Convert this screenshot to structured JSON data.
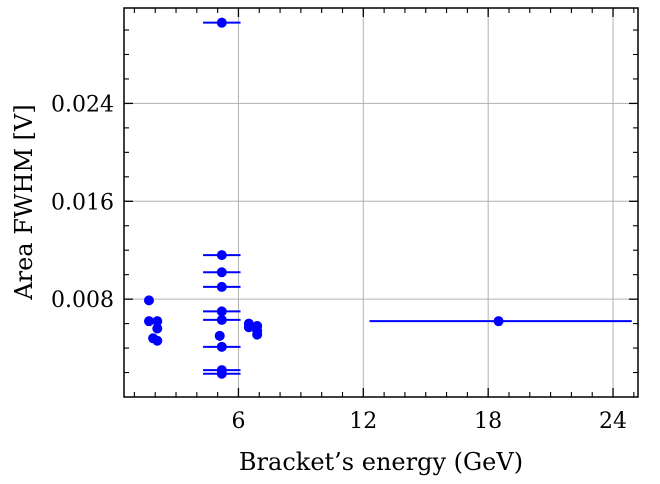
{
  "chart_data": {
    "type": "scatter",
    "xlabel": "Bracket’s energy (GeV)",
    "ylabel": "Area FWHM [V]",
    "xlim": [
      0.5,
      25.2
    ],
    "ylim": [
      0.0,
      0.0318
    ],
    "xticks": [
      6,
      12,
      18,
      24
    ],
    "xtick_labels": [
      "6",
      "12",
      "18",
      "24"
    ],
    "yticks": [
      0.008,
      0.016,
      0.024
    ],
    "ytick_labels": [
      "0.008",
      "0.016",
      "0.024"
    ],
    "grid": true,
    "series": [
      {
        "color": "#0000ff",
        "points": [
          {
            "x": 5.2,
            "y": 0.0306,
            "xerr": 0.9
          },
          {
            "x": 5.2,
            "y": 0.0116,
            "xerr": 0.9
          },
          {
            "x": 5.2,
            "y": 0.0102,
            "xerr": 0.9
          },
          {
            "x": 5.2,
            "y": 0.009,
            "xerr": 0.9
          },
          {
            "x": 5.2,
            "y": 0.007,
            "xerr": 0.9
          },
          {
            "x": 5.2,
            "y": 0.0063,
            "xerr": 0.9
          },
          {
            "x": 5.2,
            "y": 0.0041,
            "xerr": 0.9
          },
          {
            "x": 5.2,
            "y": 0.0022,
            "xerr": 0.9
          },
          {
            "x": 5.2,
            "y": 0.0019,
            "xerr": 0.9
          },
          {
            "x": 5.1,
            "y": 0.005
          },
          {
            "x": 1.7,
            "y": 0.0079
          },
          {
            "x": 1.7,
            "y": 0.0062
          },
          {
            "x": 2.1,
            "y": 0.0062
          },
          {
            "x": 2.1,
            "y": 0.0056
          },
          {
            "x": 1.9,
            "y": 0.0048
          },
          {
            "x": 2.1,
            "y": 0.0046
          },
          {
            "x": 6.5,
            "y": 0.006
          },
          {
            "x": 6.5,
            "y": 0.0057
          },
          {
            "x": 6.9,
            "y": 0.0058
          },
          {
            "x": 6.9,
            "y": 0.0054
          },
          {
            "x": 6.9,
            "y": 0.0051
          },
          {
            "x": 18.5,
            "y": 0.0062,
            "xerr_low": 6.2,
            "xerr_high": 6.4
          }
        ]
      }
    ]
  }
}
